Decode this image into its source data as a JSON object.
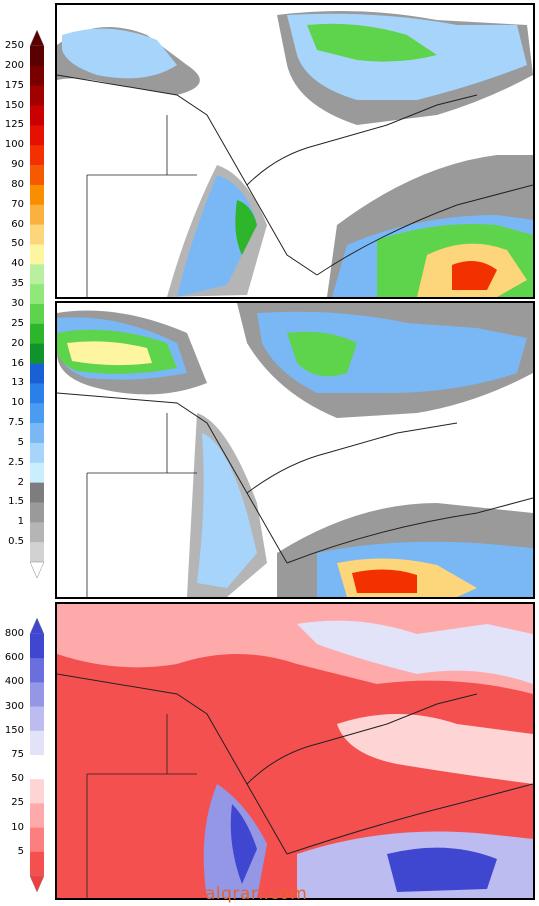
{
  "precip_scale": {
    "labels": [
      "250",
      "200",
      "175",
      "150",
      "125",
      "100",
      "90",
      "80",
      "70",
      "60",
      "50",
      "40",
      "35",
      "30",
      "25",
      "20",
      "16",
      "13",
      "10",
      "7.5",
      "5",
      "2.5",
      "2",
      "1.5",
      "1",
      "0.5"
    ],
    "colors": [
      "#5a0000",
      "#7a0000",
      "#a00000",
      "#c80000",
      "#e61000",
      "#f23000",
      "#f55a00",
      "#f98f00",
      "#fbb040",
      "#fdd57a",
      "#fdf5a0",
      "#b9f0a0",
      "#8fe878",
      "#5ed44c",
      "#2db52c",
      "#10932a",
      "#1a5fd6",
      "#2a7fe8",
      "#4a9cf0",
      "#79b8f5",
      "#a6d4fb",
      "#c9eefd",
      "#7d7d7d",
      "#9a9a9a",
      "#b5b5b5",
      "#d2d2d2"
    ],
    "top_arrow_color": "#5a0000",
    "bottom_arrow_color": "#ffffff"
  },
  "percent_scale": {
    "labels": [
      "800",
      "600",
      "400",
      "300",
      "150",
      "75",
      "50",
      "25",
      "10",
      "5"
    ],
    "colors": [
      "#3f47d1",
      "#6b6fdd",
      "#9497e6",
      "#bcbcf0",
      "#e2e2f8",
      "#ffffff",
      "#ffd4d4",
      "#ffaaaa",
      "#fb7f7f",
      "#f55050"
    ],
    "top_arrow_color": "#3f47d1",
    "bottom_arrow_color": "#ef3e3e"
  },
  "watermark": "alqrari.com"
}
